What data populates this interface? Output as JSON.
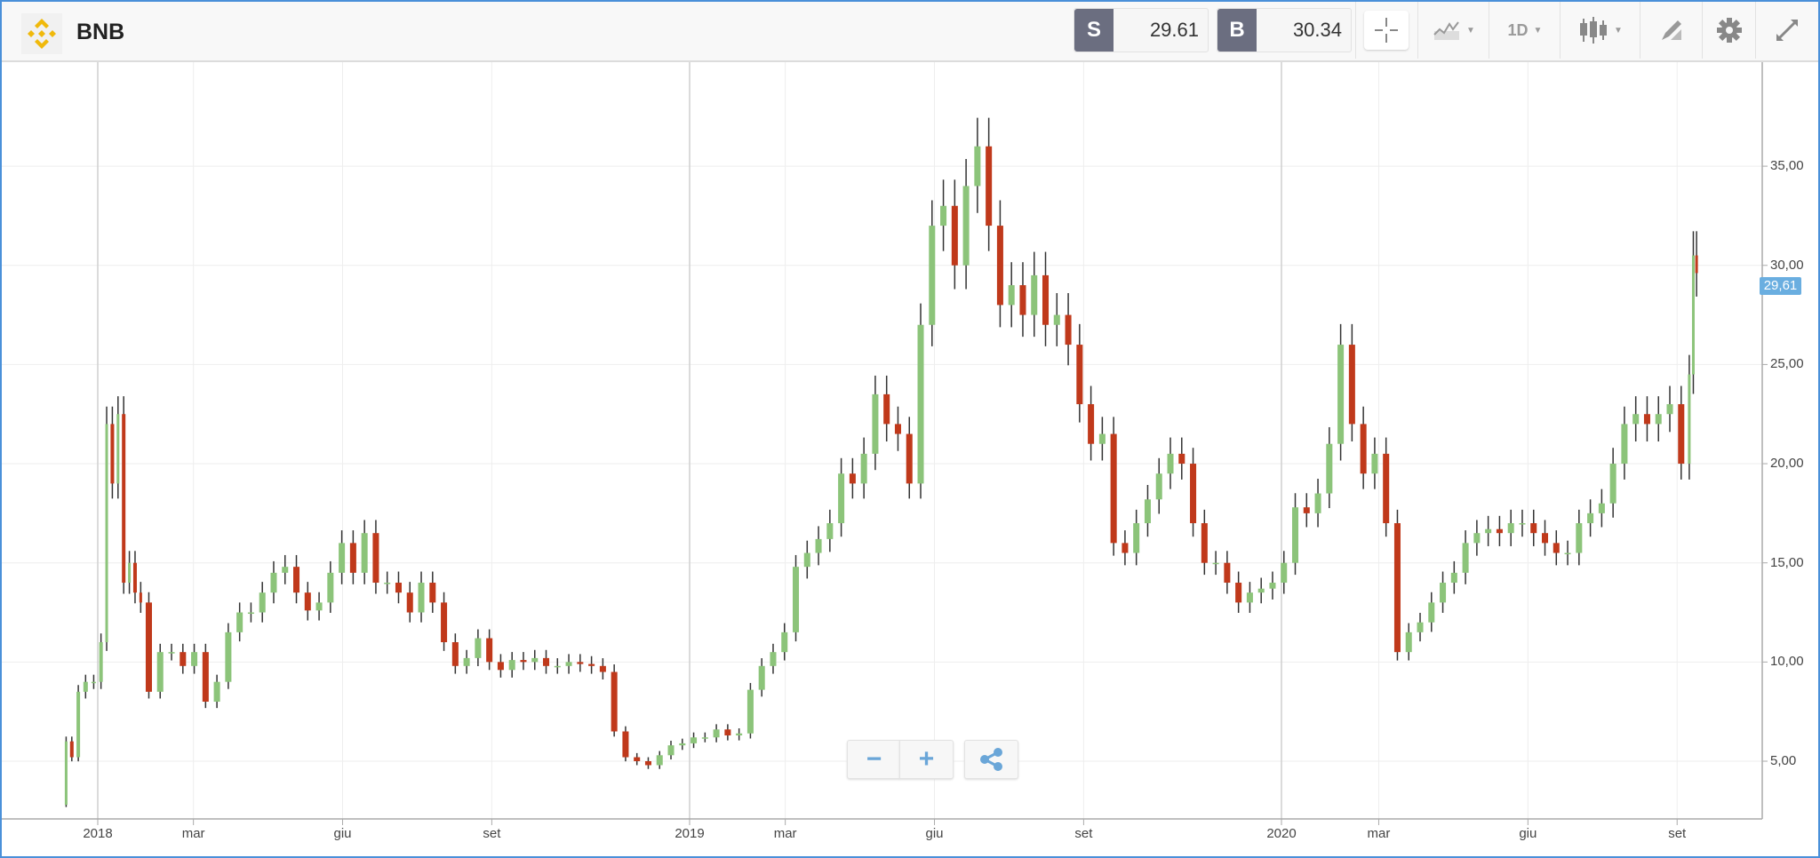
{
  "header": {
    "title": "BNB",
    "logo_icon": "binance-logo-icon",
    "sell": {
      "label": "S",
      "value": "29.61"
    },
    "buy": {
      "label": "B",
      "value": "30.34"
    },
    "toolbar": {
      "crosshair_icon": "crosshair-icon",
      "indicators_icon": "indicators-icon",
      "interval_label": "1D",
      "chart_type_icon": "candlestick-icon",
      "draw_icon": "drawing-tools-icon",
      "settings_icon": "gear-icon",
      "fullscreen_icon": "expand-icon"
    }
  },
  "controls": {
    "zoom_out": "−",
    "zoom_in": "+",
    "share_icon": "share-icon"
  },
  "colors": {
    "up": "#8cc47a",
    "down": "#c0391b",
    "wick": "#333333",
    "accent": "#6aaee0",
    "frame": "#4a90d9"
  },
  "chart_data": {
    "type": "candlestick",
    "interval": "1D",
    "last_price_label": "29,61",
    "ylim": [
      2,
      40
    ],
    "yticks": [
      "5,00",
      "10,00",
      "15,00",
      "20,00",
      "25,00",
      "30,00",
      "35,00"
    ],
    "ytick_values": [
      5,
      10,
      15,
      20,
      25,
      30,
      35
    ],
    "xticks": [
      {
        "label": "2018",
        "date": "2018-01-01",
        "major": true
      },
      {
        "label": "mar",
        "date": "2018-03-01"
      },
      {
        "label": "giu",
        "date": "2018-06-01"
      },
      {
        "label": "set",
        "date": "2018-09-01"
      },
      {
        "label": "2019",
        "date": "2019-01-01",
        "major": true
      },
      {
        "label": "mar",
        "date": "2019-03-01"
      },
      {
        "label": "giu",
        "date": "2019-06-01"
      },
      {
        "label": "set",
        "date": "2019-09-01"
      },
      {
        "label": "2020",
        "date": "2020-01-01",
        "major": true
      },
      {
        "label": "mar",
        "date": "2020-03-01"
      },
      {
        "label": "giu",
        "date": "2020-06-01"
      },
      {
        "label": "set",
        "date": "2020-09-01"
      }
    ],
    "grid": true,
    "closes": [
      [
        "2017-12-11",
        2.8
      ],
      [
        "2017-12-14",
        6
      ],
      [
        "2017-12-18",
        5.2
      ],
      [
        "2017-12-22",
        8.5
      ],
      [
        "2017-12-27",
        9
      ],
      [
        "2018-01-01",
        9
      ],
      [
        "2018-01-05",
        11
      ],
      [
        "2018-01-08",
        22
      ],
      [
        "2018-01-12",
        19
      ],
      [
        "2018-01-15",
        22.5
      ],
      [
        "2018-01-19",
        14
      ],
      [
        "2018-01-22",
        15
      ],
      [
        "2018-01-26",
        13.5
      ],
      [
        "2018-01-29",
        13
      ],
      [
        "2018-02-05",
        8.5
      ],
      [
        "2018-02-12",
        10.5
      ],
      [
        "2018-02-19",
        10.5
      ],
      [
        "2018-02-26",
        9.8
      ],
      [
        "2018-03-05",
        10.5
      ],
      [
        "2018-03-12",
        8
      ],
      [
        "2018-03-19",
        9
      ],
      [
        "2018-03-26",
        11.5
      ],
      [
        "2018-04-02",
        12.5
      ],
      [
        "2018-04-09",
        12.5
      ],
      [
        "2018-04-16",
        13.5
      ],
      [
        "2018-04-23",
        14.5
      ],
      [
        "2018-04-30",
        14.8
      ],
      [
        "2018-05-07",
        13.5
      ],
      [
        "2018-05-14",
        12.6
      ],
      [
        "2018-05-21",
        13
      ],
      [
        "2018-05-28",
        14.5
      ],
      [
        "2018-06-04",
        16
      ],
      [
        "2018-06-11",
        14.5
      ],
      [
        "2018-06-18",
        16.5
      ],
      [
        "2018-06-25",
        14
      ],
      [
        "2018-07-02",
        14
      ],
      [
        "2018-07-09",
        13.5
      ],
      [
        "2018-07-16",
        12.5
      ],
      [
        "2018-07-23",
        14
      ],
      [
        "2018-07-30",
        13
      ],
      [
        "2018-08-06",
        11
      ],
      [
        "2018-08-13",
        9.8
      ],
      [
        "2018-08-20",
        10.2
      ],
      [
        "2018-08-27",
        11.2
      ],
      [
        "2018-09-03",
        10
      ],
      [
        "2018-09-10",
        9.6
      ],
      [
        "2018-09-17",
        10.1
      ],
      [
        "2018-09-24",
        10
      ],
      [
        "2018-10-01",
        10.2
      ],
      [
        "2018-10-08",
        9.8
      ],
      [
        "2018-10-15",
        9.8
      ],
      [
        "2018-10-22",
        10
      ],
      [
        "2018-10-29",
        9.9
      ],
      [
        "2018-11-05",
        9.8
      ],
      [
        "2018-11-12",
        9.5
      ],
      [
        "2018-11-19",
        6.5
      ],
      [
        "2018-11-26",
        5.2
      ],
      [
        "2018-12-03",
        5
      ],
      [
        "2018-12-10",
        4.8
      ],
      [
        "2018-12-17",
        5.3
      ],
      [
        "2018-12-24",
        5.8
      ],
      [
        "2018-12-31",
        5.9
      ],
      [
        "2019-01-07",
        6.2
      ],
      [
        "2019-01-14",
        6.2
      ],
      [
        "2019-01-21",
        6.6
      ],
      [
        "2019-01-28",
        6.3
      ],
      [
        "2019-02-04",
        6.4
      ],
      [
        "2019-02-11",
        8.6
      ],
      [
        "2019-02-18",
        9.8
      ],
      [
        "2019-02-25",
        10.5
      ],
      [
        "2019-03-04",
        11.5
      ],
      [
        "2019-03-11",
        14.8
      ],
      [
        "2019-03-18",
        15.5
      ],
      [
        "2019-03-25",
        16.2
      ],
      [
        "2019-04-01",
        17
      ],
      [
        "2019-04-08",
        19.5
      ],
      [
        "2019-04-15",
        19
      ],
      [
        "2019-04-22",
        20.5
      ],
      [
        "2019-04-29",
        23.5
      ],
      [
        "2019-05-06",
        22
      ],
      [
        "2019-05-13",
        21.5
      ],
      [
        "2019-05-20",
        19
      ],
      [
        "2019-05-27",
        27
      ],
      [
        "2019-06-03",
        32
      ],
      [
        "2019-06-10",
        33
      ],
      [
        "2019-06-17",
        30
      ],
      [
        "2019-06-24",
        34
      ],
      [
        "2019-07-01",
        36
      ],
      [
        "2019-07-08",
        32
      ],
      [
        "2019-07-15",
        28
      ],
      [
        "2019-07-22",
        29
      ],
      [
        "2019-07-29",
        27.5
      ],
      [
        "2019-08-05",
        29.5
      ],
      [
        "2019-08-12",
        27
      ],
      [
        "2019-08-19",
        27.5
      ],
      [
        "2019-08-26",
        26
      ],
      [
        "2019-09-02",
        23
      ],
      [
        "2019-09-09",
        21
      ],
      [
        "2019-09-16",
        21.5
      ],
      [
        "2019-09-23",
        16
      ],
      [
        "2019-09-30",
        15.5
      ],
      [
        "2019-10-07",
        17
      ],
      [
        "2019-10-14",
        18.2
      ],
      [
        "2019-10-21",
        19.5
      ],
      [
        "2019-10-28",
        20.5
      ],
      [
        "2019-11-04",
        20
      ],
      [
        "2019-11-11",
        17
      ],
      [
        "2019-11-18",
        15
      ],
      [
        "2019-11-25",
        15
      ],
      [
        "2019-12-02",
        14
      ],
      [
        "2019-12-09",
        13
      ],
      [
        "2019-12-16",
        13.5
      ],
      [
        "2019-12-23",
        13.7
      ],
      [
        "2019-12-30",
        14
      ],
      [
        "2020-01-06",
        15
      ],
      [
        "2020-01-13",
        17.8
      ],
      [
        "2020-01-20",
        17.5
      ],
      [
        "2020-01-27",
        18.5
      ],
      [
        "2020-02-03",
        21
      ],
      [
        "2020-02-10",
        26
      ],
      [
        "2020-02-17",
        22
      ],
      [
        "2020-02-24",
        19.5
      ],
      [
        "2020-03-02",
        20.5
      ],
      [
        "2020-03-09",
        17
      ],
      [
        "2020-03-16",
        10.5
      ],
      [
        "2020-03-23",
        11.5
      ],
      [
        "2020-03-30",
        12
      ],
      [
        "2020-04-06",
        13
      ],
      [
        "2020-04-13",
        14
      ],
      [
        "2020-04-20",
        14.5
      ],
      [
        "2020-04-27",
        16
      ],
      [
        "2020-05-04",
        16.5
      ],
      [
        "2020-05-11",
        16.7
      ],
      [
        "2020-05-18",
        16.5
      ],
      [
        "2020-05-25",
        17
      ],
      [
        "2020-06-01",
        17
      ],
      [
        "2020-06-08",
        16.5
      ],
      [
        "2020-06-15",
        16
      ],
      [
        "2020-06-22",
        15.5
      ],
      [
        "2020-06-29",
        15.5
      ],
      [
        "2020-07-06",
        17
      ],
      [
        "2020-07-13",
        17.5
      ],
      [
        "2020-07-20",
        18
      ],
      [
        "2020-07-27",
        20
      ],
      [
        "2020-08-03",
        22
      ],
      [
        "2020-08-10",
        22.5
      ],
      [
        "2020-08-17",
        22
      ],
      [
        "2020-08-24",
        22.5
      ],
      [
        "2020-08-31",
        23
      ],
      [
        "2020-09-07",
        20
      ],
      [
        "2020-09-10",
        24.5
      ],
      [
        "2020-09-12",
        30.5
      ],
      [
        "2020-09-14",
        29.61
      ]
    ]
  }
}
